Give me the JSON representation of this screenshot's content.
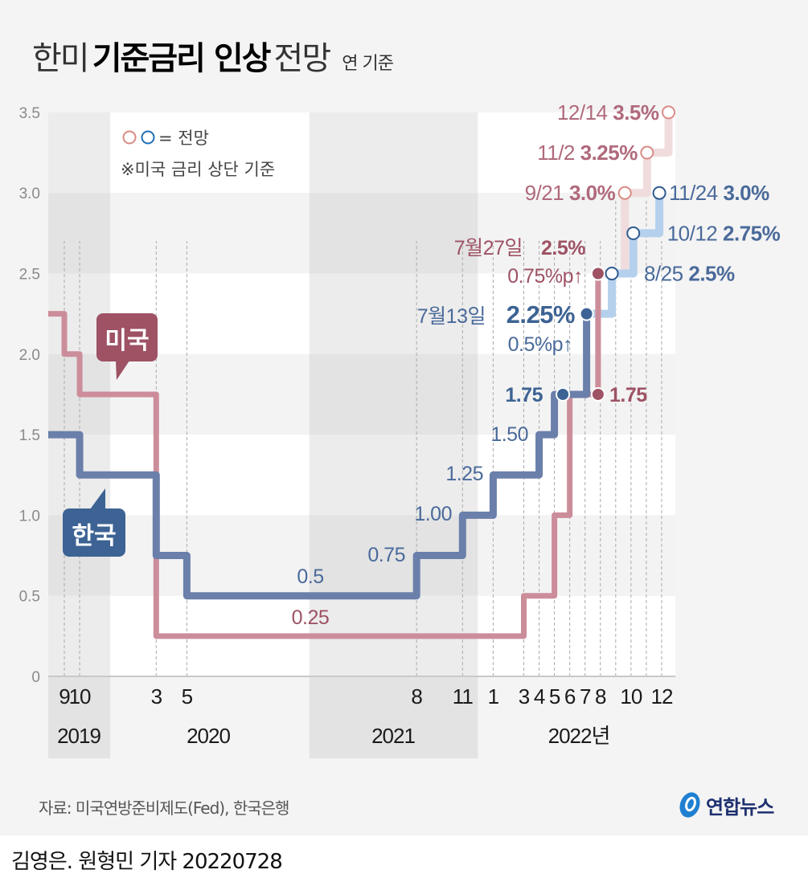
{
  "title": {
    "prefix": "한미",
    "bold": "기준금리 인상",
    "suffix": "전망",
    "unit": "연 기준"
  },
  "legend": {
    "marker_label": "= 전망",
    "note": "※미국 금리 상단 기준"
  },
  "callouts": {
    "us": "미국",
    "kr": "한국"
  },
  "source": "자료: 미국연방준비제도(Fed), 한국은행",
  "byline": "김영은. 원형민 기자 20220728",
  "logo": {
    "text": "연합뉴스",
    "icon": "yonhap-globe-icon"
  },
  "colors": {
    "us_line": "#cc8d9a",
    "us_dark": "#9e5264",
    "us_text": "#b06a7b",
    "us_proj": "#f0dcdc",
    "us_proj_circle": "#d98b84",
    "kr_line": "#6a7faa",
    "kr_dark": "#3d6394",
    "kr_text": "#4a6a9a",
    "kr_proj": "#b5d0ec",
    "kr_proj_circle": "#2f5b8f",
    "legend_blue": "#1f6fb8"
  },
  "chart_data": {
    "type": "line",
    "subtype": "step",
    "title": "한미 기준금리 인상 전망",
    "ylabel": "연 기준 (%)",
    "ylim": [
      0,
      3.5
    ],
    "yticks": [
      "0",
      "0.5",
      "1.0",
      "1.5",
      "2.0",
      "2.5",
      "3.0",
      "3.5"
    ],
    "ytick_values": [
      0,
      0.5,
      1.0,
      1.5,
      2.0,
      2.5,
      3.0,
      3.5
    ],
    "x_unit": "month index from 2019-09",
    "xlim": [
      -1.05,
      39.9
    ],
    "xticks": [
      {
        "label": "9",
        "m": 0
      },
      {
        "label": "10",
        "m": 1
      },
      {
        "label": "3",
        "m": 6
      },
      {
        "label": "5",
        "m": 8
      },
      {
        "label": "8",
        "m": 23
      },
      {
        "label": "11",
        "m": 26
      },
      {
        "label": "1",
        "m": 28
      },
      {
        "label": "3",
        "m": 30
      },
      {
        "label": "4",
        "m": 31
      },
      {
        "label": "5",
        "m": 32
      },
      {
        "label": "6",
        "m": 33
      },
      {
        "label": "7",
        "m": 34
      },
      {
        "label": "8",
        "m": 35
      },
      {
        "label": "10",
        "m": 37
      },
      {
        "label": "12",
        "m": 39
      }
    ],
    "years": [
      {
        "label": "2019",
        "start": -1.05,
        "end": 3,
        "shade": "dark"
      },
      {
        "label": "2020",
        "start": 3,
        "end": 16,
        "shade": "light"
      },
      {
        "label": "2021",
        "start": 16,
        "end": 27,
        "shade": "dark"
      },
      {
        "label": "2022년",
        "start": 27,
        "end": 39.9,
        "shade": "light"
      }
    ],
    "series": [
      {
        "name": "미국",
        "points": [
          {
            "m": -1.05,
            "v": 2.25
          },
          {
            "m": 0,
            "v": 2.0
          },
          {
            "m": 1,
            "v": 1.75
          },
          {
            "m": 6,
            "v": 0.25
          },
          {
            "m": 30,
            "v": 0.5
          },
          {
            "m": 32,
            "v": 1.0
          },
          {
            "m": 33,
            "v": 1.75
          },
          {
            "m": 34.85,
            "v": 2.5
          }
        ],
        "end_m": 34.85,
        "projection": [
          {
            "m": 36.6,
            "v": 3.0,
            "label": "9/21",
            "value_label": "3.0%"
          },
          {
            "m": 38.05,
            "v": 3.25,
            "label": "11/2",
            "value_label": "3.25%"
          },
          {
            "m": 39.45,
            "v": 3.5,
            "label": "12/14",
            "value_label": "3.5%"
          }
        ]
      },
      {
        "name": "한국",
        "points": [
          {
            "m": -1.05,
            "v": 1.5
          },
          {
            "m": 1,
            "v": 1.25
          },
          {
            "m": 6,
            "v": 0.75
          },
          {
            "m": 8,
            "v": 0.5
          },
          {
            "m": 23,
            "v": 0.75
          },
          {
            "m": 26,
            "v": 1.0
          },
          {
            "m": 28,
            "v": 1.25
          },
          {
            "m": 31,
            "v": 1.5
          },
          {
            "m": 32,
            "v": 1.75
          },
          {
            "m": 34.1,
            "v": 2.25
          }
        ],
        "end_m": 34.1,
        "projection": [
          {
            "m": 35.75,
            "v": 2.5,
            "label": "8/25",
            "value_label": "2.5%"
          },
          {
            "m": 37.15,
            "v": 2.75,
            "label": "10/12",
            "value_label": "2.75%"
          },
          {
            "m": 38.85,
            "v": 3.0,
            "label": "11/24",
            "value_label": "3.0%"
          }
        ]
      }
    ],
    "annotations": {
      "kr_0_5": "0.5",
      "us_0_25": "0.25",
      "kr_0_75": "0.75",
      "kr_1_00": "1.00",
      "kr_1_25": "1.25",
      "kr_1_50": "1.50",
      "kr_1_75": "1.75",
      "us_1_75": "1.75",
      "kr_hike_date": "7월13일",
      "kr_hike_value": "2.25%",
      "kr_hike_delta": "0.5%p↑",
      "us_hike_date": "7월27일",
      "us_hike_value": "2.5%",
      "us_hike_delta": "0.75%p↑"
    },
    "legend_position": "top-left"
  }
}
